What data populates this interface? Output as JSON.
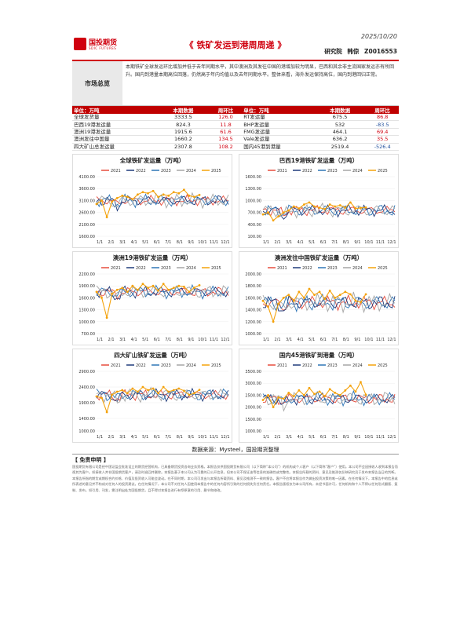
{
  "header": {
    "logo_cn": "国投期货",
    "logo_en": "SDIC FUTURES",
    "title": "《 铁矿发运到港周周递 》",
    "date": "2025/10/20",
    "dept": "研究院",
    "author": "韩倞",
    "code": "Z0016553"
  },
  "summary": {
    "label": "市场总览",
    "text": "本期铁矿全球发运环比增加并低于去年同期水平，其中澳洲及其发往中国的港增加较为明显，巴西和其余非主流国家发运亦有所回升。国内到港量本期高位回落，仍然高于年内均值以及去年同期水平。整体来看，海外发运保持高位，国内到港回归正常。"
  },
  "table": {
    "headers": [
      "单位：万吨",
      "本期数据",
      "周环比",
      "单位：万吨",
      "本期数据",
      "周环比"
    ],
    "rows": [
      {
        "n1": "全球发货量",
        "v1": "3333.5",
        "c1": "126.0",
        "s1": "red",
        "n2": "RT发运量",
        "v2": "675.5",
        "c2": "86.8",
        "s2": "red"
      },
      {
        "n1": "巴西19港发运量",
        "v1": "824.3",
        "c1": "11.8",
        "s1": "red",
        "n2": "BHP发运量",
        "v2": "532",
        "c2": "-83.5",
        "s2": "blue"
      },
      {
        "n1": "澳洲19港发运量",
        "v1": "1915.6",
        "c1": "61.6",
        "s1": "red",
        "n2": "FMG发运量",
        "v2": "464.1",
        "c2": "69.4",
        "s2": "red"
      },
      {
        "n1": "澳洲发往中国量",
        "v1": "1660.2",
        "c1": "134.5",
        "s1": "red",
        "n2": "Vale发运量",
        "v2": "636.2",
        "c2": "35.5",
        "s2": "red"
      },
      {
        "n1": "四大矿山总发运量",
        "v1": "2307.8",
        "c1": "108.2",
        "s1": "red",
        "n2": "国内45港到港量",
        "v2": "2519.4",
        "c2": "-526.4",
        "s2": "blue"
      }
    ]
  },
  "legend": [
    "2021",
    "2022",
    "2023",
    "2024",
    "2025"
  ],
  "series_colors": [
    "#e74c3c",
    "#1f3a7a",
    "#2e75b6",
    "#a6a6a6",
    "#f4a20b"
  ],
  "x_ticks": [
    "1/1",
    "2/1",
    "3/1",
    "4/1",
    "5/1",
    "6/1",
    "7/1",
    "8/1",
    "9/1",
    "10/1",
    "11/1",
    "12/1"
  ],
  "chart_data": [
    {
      "type": "line",
      "title": "全球铁矿发运量（万吨）",
      "ylim": [
        1600,
        4100
      ],
      "yticks": [
        "1600.00",
        "2100.00",
        "2600.00",
        "3100.00",
        "3600.00",
        "4100.00"
      ],
      "base": 3100,
      "amp": 280,
      "y2025": [
        2950,
        3100,
        2400,
        3050,
        3200,
        3300,
        3250,
        3150,
        3350,
        3450,
        3400,
        3500,
        3250,
        3350,
        3300,
        3450,
        3400,
        3550,
        3300,
        3250,
        3333
      ]
    },
    {
      "type": "line",
      "title": "巴西19港铁矿发运量（万吨）",
      "ylim": [
        100,
        1600
      ],
      "yticks": [
        "100.00",
        "400.00",
        "700.00",
        "1000.00",
        "1300.00",
        "1600.00"
      ],
      "base": 750,
      "amp": 170,
      "y2025": [
        650,
        700,
        500,
        600,
        700,
        750,
        850,
        800,
        900,
        950,
        850,
        820,
        780,
        900,
        850,
        880,
        820,
        950,
        800,
        812,
        824
      ]
    },
    {
      "type": "line",
      "title": "澳洲19港铁矿发运量（万吨）",
      "ylim": [
        700,
        2200
      ],
      "yticks": [
        "700.00",
        "1000.00",
        "1300.00",
        "1600.00",
        "1900.00",
        "2200.00"
      ],
      "base": 1750,
      "amp": 170,
      "y2025": [
        1750,
        1600,
        1100,
        1700,
        1800,
        1850,
        1750,
        1900,
        1800,
        1950,
        1850,
        1900,
        1780,
        1950,
        1800,
        1850,
        1900,
        1880,
        1750,
        1854,
        1916
      ]
    },
    {
      "type": "line",
      "title": "澳洲发往中国铁矿发运量（万吨）",
      "ylim": [
        1000,
        2000
      ],
      "yticks": [
        "1000.00",
        "1200.00",
        "1400.00",
        "1600.00",
        "1800.00",
        "2000.00"
      ],
      "base": 1520,
      "amp": 150,
      "y2025": [
        1550,
        1450,
        1200,
        1500,
        1600,
        1650,
        1550,
        1700,
        1600,
        1750,
        1650,
        1700,
        1580,
        1720,
        1600,
        1650,
        1700,
        1660,
        1550,
        1526,
        1660
      ]
    },
    {
      "type": "line",
      "title": "四大矿山铁矿发运量（万吨）",
      "ylim": [
        1000,
        2900
      ],
      "yticks": [
        "1000.00",
        "1400.00",
        "1900.00",
        "2400.00",
        "2900.00"
      ],
      "base": 2150,
      "amp": 220,
      "y2025": [
        2100,
        2050,
        1600,
        2150,
        2250,
        2300,
        2200,
        2350,
        2250,
        2400,
        2300,
        2350,
        2200,
        2400,
        2250,
        2300,
        2350,
        2280,
        2150,
        2200,
        2308
      ]
    },
    {
      "type": "line",
      "title": "国内45港铁矿到港量（万吨）",
      "ylim": [
        1000,
        3500
      ],
      "yticks": [
        "1000.00",
        "1500.00",
        "2000.00",
        "2500.00",
        "3000.00",
        "3500.00"
      ],
      "base": 2350,
      "amp": 300,
      "y2025": [
        2300,
        2500,
        2000,
        2400,
        2350,
        2600,
        2450,
        2700,
        2500,
        2800,
        2550,
        2650,
        2450,
        2750,
        2600,
        2500,
        2700,
        2900,
        2650,
        3046,
        2519
      ]
    }
  ],
  "source": "数据来源：Mysteel，国投期货整理",
  "disclaimer": {
    "title": "【 免责申明 】",
    "text": "国投期货有限公司是经中国证监会批准设立的期货经营机构，已具备期货投资咨询业务资格。本报告仅供国投期货有限公司（以下简称“本公司”）的机构或个人客户（以下简称“客户”）使用。本公司不会因接收人收到本报告而视其为客户。如接收人并非国投期货客户，请及时退回并删除。本报告基于本公司认为可靠的已公开信息，但本公司不保证该等信息的准确性或完整性。本报告所载的资料、意见及推测仅反映研究员于发布本报告当日的判断。本报告所指的期货或期权合约价格、价值及投资收入可能会波动。在不同时期，本公司可发出与本报告所载资料、意见及推测不一致的报告。客户不应将本报告作为做出投资决策的唯一因素。在任何情况下，本报告中的信息或所表述的意见并不构成对任何人的投资建议。在任何情况下，本公司不对任何人因使用本报告中的任何内容所引致的任何损失负任何责任。本报告版权仅为本公司所有，未经书面许可，任何机构和个人不得以任何形式翻版、复制、发布。如引用、刊发，需注明出处为国投期货，且不得对本报告进行有悖原意的引用、删节和修改。"
  }
}
